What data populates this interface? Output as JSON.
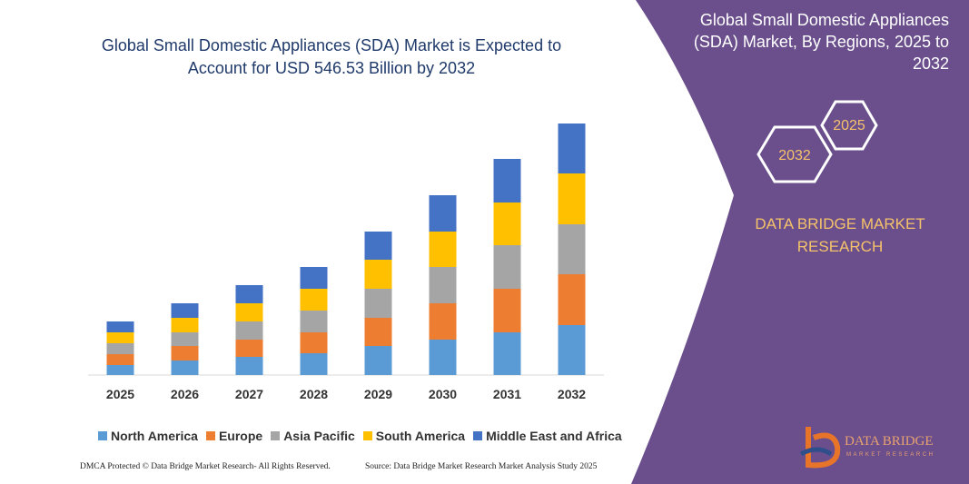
{
  "chart_data": {
    "type": "stacked-bar",
    "title": "Global Small Domestic Appliances (SDA) Market is Expected to Account for USD 546.53 Billion by 2032",
    "categories": [
      "2025",
      "2026",
      "2027",
      "2028",
      "2029",
      "2030",
      "2031",
      "2032"
    ],
    "series": [
      {
        "name": "North America",
        "color": "#5b9bd5",
        "values": [
          11,
          16,
          20,
          24,
          32,
          39,
          47,
          55
        ]
      },
      {
        "name": "Europe",
        "color": "#ed7d31",
        "values": [
          12,
          16,
          19,
          23,
          31,
          40,
          48,
          56
        ]
      },
      {
        "name": "Asia Pacific",
        "color": "#a5a5a5",
        "values": [
          12,
          15,
          20,
          24,
          32,
          40,
          48,
          55
        ]
      },
      {
        "name": "South America",
        "color": "#ffc000",
        "values": [
          12,
          16,
          20,
          24,
          32,
          39,
          47,
          56
        ]
      },
      {
        "name": "Middle East and Africa",
        "color": "#4472c4",
        "values": [
          12,
          16,
          20,
          24,
          31,
          40,
          48,
          55
        ]
      }
    ]
  },
  "footer": {
    "left": "DMCA Protected © Data Bridge Market Research- All Rights Reserved.",
    "right": "Source: Data Bridge Market Research Market Analysis Study 2025"
  },
  "panel": {
    "title": "Global Small Domestic Appliances (SDA) Market, By Regions, 2025 to 2032",
    "hexagons": [
      "2025",
      "2032"
    ],
    "brand": "DATA BRIDGE MARKET RESEARCH",
    "logo_name": "DATA BRIDGE",
    "logo_tagline": "MARKET RESEARCH"
  }
}
